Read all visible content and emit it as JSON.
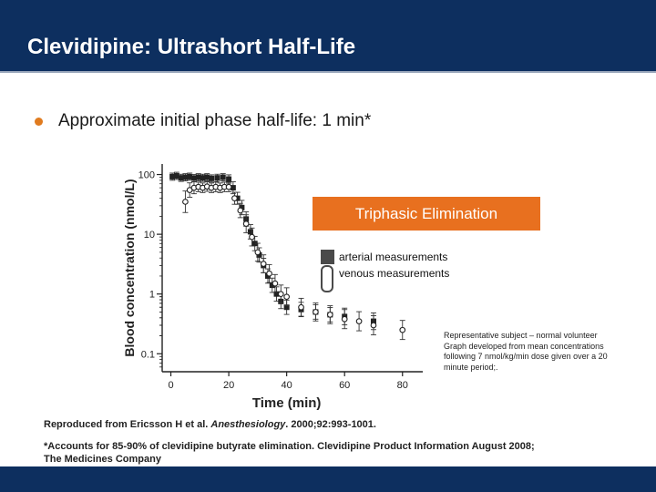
{
  "slide": {
    "title": "Clevidipine: Ultrashort Half-Life",
    "bullet": "Approximate initial phase half-life: 1 min*",
    "callout": "Triphasic Elimination",
    "legend": {
      "arterial": "arterial measurements",
      "venous": "venous measurements"
    },
    "note_lines": [
      "Representative subject – normal volunteer",
      "Graph developed from mean concentrations",
      "following 7 nmol/kg/min dose given over a 20",
      "minute period;."
    ],
    "reference": {
      "prefix": "Reproduced from Ericsson H et al. ",
      "journal": "Anesthesiology",
      "suffix": ". 2000;92:993-1001."
    },
    "footnote": "*Accounts for 85-90% of clevidipine butyrate elimination. Clevidipine Product Information August 2008; The Medicines Company",
    "colors": {
      "title_bar": "#0d2f5f",
      "bullet": "#e07b1f",
      "callout": "#e8701f"
    }
  },
  "chart_data": {
    "type": "scatter",
    "xlabel": "Time (min)",
    "ylabel": "Blood concentration (nmol/L)",
    "x_ticks": [
      0,
      20,
      40,
      60,
      80
    ],
    "x_tick_labels": [
      "0",
      "20",
      "40",
      "60",
      "80"
    ],
    "y_ticks": [
      100,
      10,
      1,
      0.1
    ],
    "y_tick_labels": [
      "100",
      "10",
      "1",
      "0.1"
    ],
    "xlim": [
      -3,
      87
    ],
    "ylim": [
      0.05,
      150
    ],
    "y_scale": "log",
    "grid": false,
    "series": [
      {
        "name": "arterial measurements",
        "marker": "filled-square",
        "points": [
          {
            "x": 0.5,
            "y": 92,
            "err": 0.06
          },
          {
            "x": 2,
            "y": 95,
            "err": 0.06
          },
          {
            "x": 3.5,
            "y": 88,
            "err": 0.06
          },
          {
            "x": 5,
            "y": 90,
            "err": 0.06
          },
          {
            "x": 6.5,
            "y": 92,
            "err": 0.06
          },
          {
            "x": 8,
            "y": 87,
            "err": 0.06
          },
          {
            "x": 9.5,
            "y": 90,
            "err": 0.06
          },
          {
            "x": 11,
            "y": 88,
            "err": 0.06
          },
          {
            "x": 12.5,
            "y": 90,
            "err": 0.06
          },
          {
            "x": 14,
            "y": 86,
            "err": 0.06
          },
          {
            "x": 16,
            "y": 88,
            "err": 0.06
          },
          {
            "x": 18,
            "y": 90,
            "err": 0.06
          },
          {
            "x": 20,
            "y": 84,
            "err": 0.07
          },
          {
            "x": 21.5,
            "y": 60,
            "err": 0.1
          },
          {
            "x": 23,
            "y": 40,
            "err": 0.1
          },
          {
            "x": 24.5,
            "y": 28,
            "err": 0.12
          },
          {
            "x": 26,
            "y": 18,
            "err": 0.12
          },
          {
            "x": 27.5,
            "y": 11,
            "err": 0.12
          },
          {
            "x": 29,
            "y": 7,
            "err": 0.12
          },
          {
            "x": 30.5,
            "y": 4.5,
            "err": 0.12
          },
          {
            "x": 32,
            "y": 3,
            "err": 0.12
          },
          {
            "x": 33.5,
            "y": 2,
            "err": 0.12
          },
          {
            "x": 35,
            "y": 1.4,
            "err": 0.12
          },
          {
            "x": 36.5,
            "y": 1.0,
            "err": 0.12
          },
          {
            "x": 38,
            "y": 0.75,
            "err": 0.12
          },
          {
            "x": 40,
            "y": 0.6,
            "err": 0.12
          },
          {
            "x": 45,
            "y": 0.55,
            "err": 0.12
          },
          {
            "x": 50,
            "y": 0.5,
            "err": 0.12
          },
          {
            "x": 55,
            "y": 0.45,
            "err": 0.12
          },
          {
            "x": 60,
            "y": 0.42,
            "err": 0.14
          },
          {
            "x": 70,
            "y": 0.35,
            "err": 0.14
          }
        ]
      },
      {
        "name": "venous measurements",
        "marker": "open-circle",
        "points": [
          {
            "x": 5,
            "y": 35,
            "err": 0.18
          },
          {
            "x": 6.5,
            "y": 55,
            "err": 0.12
          },
          {
            "x": 8,
            "y": 60,
            "err": 0.1
          },
          {
            "x": 9.5,
            "y": 62,
            "err": 0.08
          },
          {
            "x": 11,
            "y": 60,
            "err": 0.08
          },
          {
            "x": 12.5,
            "y": 63,
            "err": 0.08
          },
          {
            "x": 14,
            "y": 60,
            "err": 0.08
          },
          {
            "x": 15.5,
            "y": 62,
            "err": 0.08
          },
          {
            "x": 17,
            "y": 60,
            "err": 0.08
          },
          {
            "x": 18.5,
            "y": 62,
            "err": 0.08
          },
          {
            "x": 20,
            "y": 62,
            "err": 0.08
          },
          {
            "x": 22,
            "y": 40,
            "err": 0.1
          },
          {
            "x": 24,
            "y": 25,
            "err": 0.12
          },
          {
            "x": 26,
            "y": 15,
            "err": 0.15
          },
          {
            "x": 28,
            "y": 9,
            "err": 0.15
          },
          {
            "x": 30,
            "y": 5,
            "err": 0.15
          },
          {
            "x": 32,
            "y": 3.2,
            "err": 0.15
          },
          {
            "x": 34,
            "y": 2.2,
            "err": 0.15
          },
          {
            "x": 36,
            "y": 1.5,
            "err": 0.15
          },
          {
            "x": 38,
            "y": 1.0,
            "err": 0.15
          },
          {
            "x": 40,
            "y": 0.9,
            "err": 0.15
          },
          {
            "x": 45,
            "y": 0.6,
            "err": 0.15
          },
          {
            "x": 50,
            "y": 0.5,
            "err": 0.15
          },
          {
            "x": 55,
            "y": 0.45,
            "err": 0.15
          },
          {
            "x": 60,
            "y": 0.38,
            "err": 0.16
          },
          {
            "x": 65,
            "y": 0.35,
            "err": 0.16
          },
          {
            "x": 70,
            "y": 0.3,
            "err": 0.16
          },
          {
            "x": 80,
            "y": 0.25,
            "err": 0.16
          }
        ]
      }
    ]
  }
}
